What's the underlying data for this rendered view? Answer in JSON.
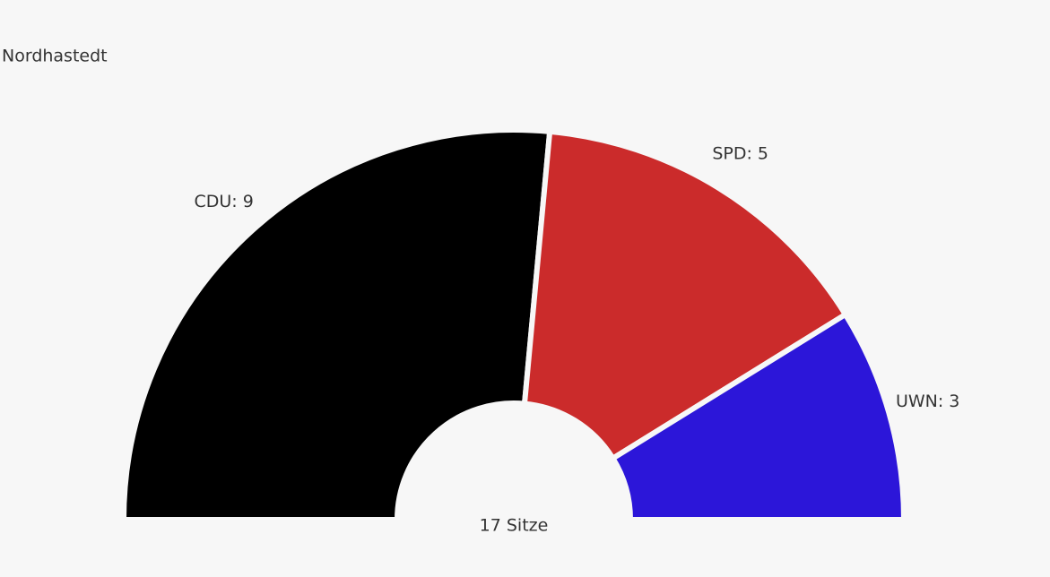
{
  "chart_data": {
    "type": "half-donut",
    "title": "Nordhastedt",
    "values": [
      9,
      5,
      3
    ],
    "value_labels": [
      "CDU: 9",
      "SPD: 5",
      "UWN: 3"
    ],
    "colors": [
      "#000000",
      "#cb2b2b",
      "#2c16d9"
    ],
    "center_label": "17 Sitze"
  }
}
